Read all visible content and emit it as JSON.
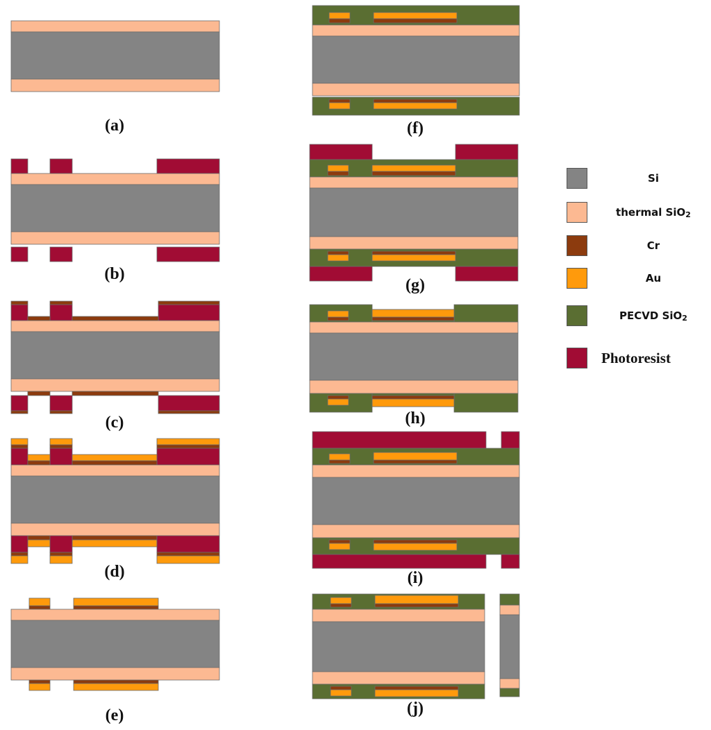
{
  "captions": {
    "a": "(a)",
    "b": "(b)",
    "c": "(c)",
    "d": "(d)",
    "e": "(e)",
    "f": "(f)",
    "g": "(g)",
    "h": "(h)",
    "i": "(i)",
    "j": "(j)"
  },
  "legend": {
    "si": "Si",
    "thermal_sio2_text": "thermal SiO",
    "thermal_sio2_sub": "2",
    "cr": "Cr",
    "au": "Au",
    "pecvd_sio2_text": "PECVD SiO",
    "pecvd_sio2_sub": "2",
    "photoresist": "Photoresist"
  },
  "colors": {
    "si": "#848484",
    "thermal_sio2": "#fcb992",
    "cr": "#8c3b0e",
    "au": "#ff9a0c",
    "pecvd_sio2": "#5a6e32",
    "photoresist": "#a10c34",
    "stroke": "#6b6b6b"
  }
}
